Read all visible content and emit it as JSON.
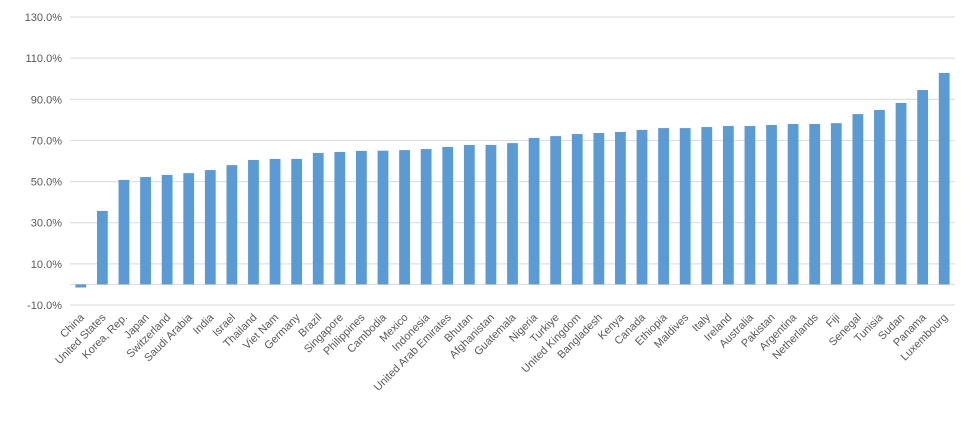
{
  "chart_data": {
    "type": "bar",
    "color": "#5b9bd5",
    "grid": true,
    "categories": [
      "China",
      "United States",
      "Korea, Rep.",
      "Japan",
      "Switzerland",
      "Saudi Arabia",
      "India",
      "Israel",
      "Thailand",
      "Viet Nam",
      "Germany",
      "Brazil",
      "Singapore",
      "Philippines",
      "Cambodia",
      "Mexico",
      "Indonesia",
      "United Arab Emirates",
      "Bhutan",
      "Afghanistan",
      "Guatemala",
      "Nigeria",
      "Turkiye",
      "United Kingdom",
      "Bangladesh",
      "Kenya",
      "Canada",
      "Ethiopia",
      "Maldives",
      "Italy",
      "Ireland",
      "Australia",
      "Pakistan",
      "Argentina",
      "Netherlands",
      "Fiji",
      "Senegal",
      "Tunisia",
      "Sudan",
      "Panama",
      "Luxembourg"
    ],
    "values": [
      -1.5,
      35.7,
      50.8,
      52.2,
      53.2,
      54.1,
      55.6,
      58.0,
      60.5,
      61.0,
      61.0,
      63.9,
      64.4,
      64.9,
      65.0,
      65.3,
      65.8,
      66.8,
      67.8,
      67.8,
      68.7,
      71.2,
      72.1,
      73.1,
      73.6,
      74.1,
      75.1,
      76.0,
      76.0,
      76.5,
      77.0,
      77.0,
      77.5,
      78.0,
      78.0,
      78.4,
      82.8,
      84.8,
      88.2,
      94.5,
      102.8
    ],
    "ylim": [
      -10,
      130
    ],
    "yticks": [
      {
        "value": -10,
        "label": "-10.0%"
      },
      {
        "value": 10,
        "label": "10.0%"
      },
      {
        "value": 30,
        "label": "30.0%"
      },
      {
        "value": 50,
        "label": "50.0%"
      },
      {
        "value": 70,
        "label": "70.0%"
      },
      {
        "value": 90,
        "label": "90.0%"
      },
      {
        "value": 110,
        "label": "110.0%"
      },
      {
        "value": 130,
        "label": "130.0%"
      }
    ]
  }
}
